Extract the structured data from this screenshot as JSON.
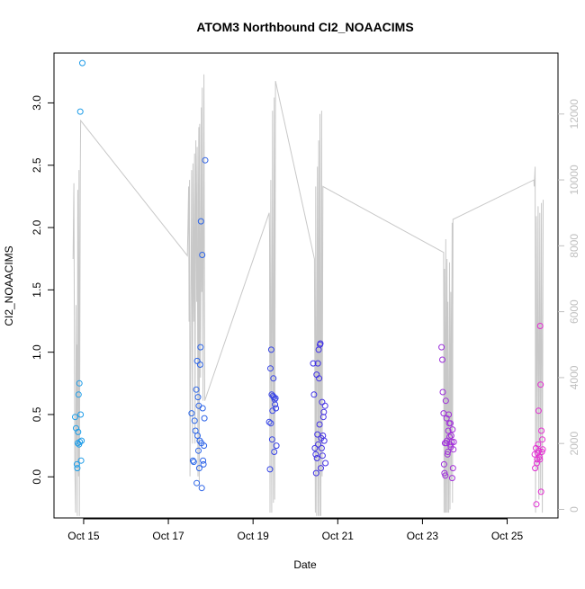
{
  "chart_data": {
    "type": "scatter",
    "title": "ATOM3 Northbound CI2_NOAACIMS",
    "xlabel": "Date",
    "ylabel": "CI2_NOAACIMS",
    "x_ticks": [
      "Oct 15",
      "Oct 17",
      "Oct 19",
      "Oct 21",
      "Oct 23",
      "Oct 25"
    ],
    "x_tick_days": [
      15,
      17,
      19,
      21,
      23,
      25
    ],
    "xlim": [
      14.3,
      26.2
    ],
    "ylim": [
      -0.33,
      3.4
    ],
    "y_ticks": [
      "0.0",
      "0.5",
      "1.0",
      "1.5",
      "2.0",
      "2.5",
      "3.0"
    ],
    "y_tick_values": [
      0,
      0.5,
      1.0,
      1.5,
      2.0,
      2.5,
      3.0
    ],
    "y2lim": [
      -260,
      13850
    ],
    "y2_ticks": [
      "0",
      "2000",
      "4000",
      "6000",
      "8000",
      "10000",
      "12000"
    ],
    "y2_tick_values": [
      0,
      2000,
      4000,
      6000,
      8000,
      10000,
      12000
    ],
    "grid": false,
    "legend": "none",
    "colors": {
      "points_start": "#1E9FE8",
      "points_mid": "#3A32E6",
      "points_end": "#E62ED2",
      "altitude_line": "#c8c8c8",
      "axis": "#000000",
      "right_axis_text": "#bfbfbf"
    },
    "series": [
      {
        "values": [
          [
            14.8,
            0.48
          ],
          [
            14.82,
            0.39
          ],
          [
            14.84,
            0.1
          ],
          [
            14.85,
            0.07
          ],
          [
            14.86,
            0.27
          ],
          [
            14.87,
            0.36
          ],
          [
            14.88,
            0.66
          ],
          [
            14.89,
            0.26
          ],
          [
            14.9,
            0.75
          ],
          [
            14.91,
            0.28
          ],
          [
            14.92,
            2.93
          ],
          [
            14.93,
            0.5
          ],
          [
            14.94,
            0.13
          ],
          [
            14.95,
            0.29
          ],
          [
            14.97,
            3.32
          ],
          [
            17.55,
            0.51
          ],
          [
            17.58,
            0.13
          ],
          [
            17.6,
            0.12
          ],
          [
            17.62,
            0.45
          ],
          [
            17.64,
            0.37
          ],
          [
            17.66,
            0.7
          ],
          [
            17.67,
            -0.05
          ],
          [
            17.68,
            0.93
          ],
          [
            17.69,
            0.33
          ],
          [
            17.7,
            0.64
          ],
          [
            17.71,
            0.21
          ],
          [
            17.72,
            0.57
          ],
          [
            17.73,
            0.07
          ],
          [
            17.74,
            0.29
          ],
          [
            17.75,
            0.9
          ],
          [
            17.76,
            1.04
          ],
          [
            17.77,
            2.05
          ],
          [
            17.78,
            0.27
          ],
          [
            17.79,
            -0.09
          ],
          [
            17.8,
            1.78
          ],
          [
            17.81,
            0.55
          ],
          [
            17.82,
            0.13
          ],
          [
            17.83,
            0.1
          ],
          [
            17.84,
            0.25
          ],
          [
            17.85,
            0.47
          ],
          [
            17.87,
            2.54
          ],
          [
            19.38,
            0.44
          ],
          [
            19.4,
            0.06
          ],
          [
            19.41,
            0.87
          ],
          [
            19.42,
            0.43
          ],
          [
            19.43,
            1.02
          ],
          [
            19.44,
            0.66
          ],
          [
            19.45,
            0.3
          ],
          [
            19.46,
            0.53
          ],
          [
            19.47,
            0.65
          ],
          [
            19.48,
            0.79
          ],
          [
            19.49,
            0.64
          ],
          [
            19.5,
            0.2
          ],
          [
            19.51,
            0.62
          ],
          [
            19.52,
            0.58
          ],
          [
            19.53,
            0.63
          ],
          [
            19.54,
            0.55
          ],
          [
            19.55,
            0.25
          ],
          [
            20.42,
            0.91
          ],
          [
            20.44,
            0.66
          ],
          [
            20.46,
            0.23
          ],
          [
            20.48,
            0.18
          ],
          [
            20.49,
            0.03
          ],
          [
            20.5,
            0.82
          ],
          [
            20.51,
            0.15
          ],
          [
            20.52,
            0.34
          ],
          [
            20.53,
            0.91
          ],
          [
            20.54,
            0.26
          ],
          [
            20.55,
            1.02
          ],
          [
            20.56,
            0.79
          ],
          [
            20.57,
            0.42
          ],
          [
            20.58,
            1.06
          ],
          [
            20.59,
            1.07
          ],
          [
            20.6,
            0.07
          ],
          [
            20.61,
            0.31
          ],
          [
            20.62,
            0.23
          ],
          [
            20.63,
            0.6
          ],
          [
            20.64,
            0.17
          ],
          [
            20.65,
            0.33
          ],
          [
            20.66,
            0.48
          ],
          [
            20.67,
            0.52
          ],
          [
            20.68,
            0.29
          ],
          [
            20.7,
            0.57
          ],
          [
            20.71,
            0.11
          ],
          [
            23.45,
            1.04
          ],
          [
            23.47,
            0.94
          ],
          [
            23.48,
            0.68
          ],
          [
            23.5,
            0.51
          ],
          [
            23.51,
            0.1
          ],
          [
            23.52,
            0.03
          ],
          [
            23.53,
            0.27
          ],
          [
            23.54,
            0.01
          ],
          [
            23.55,
            0.61
          ],
          [
            23.56,
            0.27
          ],
          [
            23.57,
            0.47
          ],
          [
            23.58,
            0.29
          ],
          [
            23.59,
            0.18
          ],
          [
            23.6,
            0.2
          ],
          [
            23.61,
            0.37
          ],
          [
            23.62,
            0.5
          ],
          [
            23.63,
            0.43
          ],
          [
            23.64,
            0.32
          ],
          [
            23.65,
            0.26
          ],
          [
            23.66,
            0.43
          ],
          [
            23.67,
            0.24
          ],
          [
            23.68,
            0.33
          ],
          [
            23.69,
            0.28
          ],
          [
            23.7,
            -0.01
          ],
          [
            23.71,
            0.38
          ],
          [
            23.72,
            0.07
          ],
          [
            23.73,
            0.22
          ],
          [
            23.74,
            0.28
          ],
          [
            25.65,
            0.18
          ],
          [
            25.66,
            0.07
          ],
          [
            25.68,
            0.23
          ],
          [
            25.69,
            -0.22
          ],
          [
            25.7,
            0.11
          ],
          [
            25.71,
            0.14
          ],
          [
            25.72,
            0.19
          ],
          [
            25.73,
            0.26
          ],
          [
            25.74,
            0.53
          ],
          [
            25.75,
            0.21
          ],
          [
            25.76,
            0.16
          ],
          [
            25.77,
            0.14
          ],
          [
            25.78,
            1.21
          ],
          [
            25.79,
            0.74
          ],
          [
            25.8,
            -0.12
          ],
          [
            25.81,
            0.37
          ],
          [
            25.82,
            0.2
          ],
          [
            25.83,
            0.3
          ],
          [
            25.84,
            0.22
          ]
        ]
      },
      {
        "axis": "right",
        "style": "line",
        "values": [
          [
            14.75,
            7600
          ],
          [
            14.77,
            9900
          ],
          [
            14.79,
            1400
          ],
          [
            14.81,
            -100
          ],
          [
            14.82,
            6200
          ],
          [
            14.83,
            2100
          ],
          [
            14.84,
            5000
          ],
          [
            14.85,
            -200
          ],
          [
            14.86,
            9700
          ],
          [
            14.88,
            1000
          ],
          [
            14.89,
            10300
          ],
          [
            14.9,
            -200
          ],
          [
            14.92,
            10100
          ],
          [
            14.93,
            11800
          ],
          [
            17.45,
            7700
          ],
          [
            17.46,
            8400
          ],
          [
            17.48,
            9800
          ],
          [
            17.49,
            5700
          ],
          [
            17.5,
            10000
          ],
          [
            17.51,
            1000
          ],
          [
            17.53,
            5300
          ],
          [
            17.55,
            10300
          ],
          [
            17.57,
            2000
          ],
          [
            17.58,
            10500
          ],
          [
            17.6,
            5700
          ],
          [
            17.62,
            10800
          ],
          [
            17.63,
            2000
          ],
          [
            17.65,
            11200
          ],
          [
            17.67,
            6300
          ],
          [
            17.68,
            11000
          ],
          [
            17.7,
            1000
          ],
          [
            17.71,
            9800
          ],
          [
            17.72,
            11600
          ],
          [
            17.73,
            700
          ],
          [
            17.74,
            11700
          ],
          [
            17.76,
            4000
          ],
          [
            17.78,
            12200
          ],
          [
            17.79,
            6600
          ],
          [
            17.8,
            12800
          ],
          [
            17.82,
            3300
          ],
          [
            17.84,
            13200
          ],
          [
            17.86,
            3300
          ],
          [
            19.38,
            9000
          ],
          [
            19.39,
            8400
          ],
          [
            19.4,
            -100
          ],
          [
            19.42,
            10000
          ],
          [
            19.44,
            -100
          ],
          [
            19.46,
            12100
          ],
          [
            19.48,
            200
          ],
          [
            19.5,
            12500
          ],
          [
            19.51,
            300
          ],
          [
            19.53,
            13000
          ],
          [
            20.45,
            7600
          ],
          [
            20.47,
            -100
          ],
          [
            20.48,
            9800
          ],
          [
            20.5,
            -200
          ],
          [
            20.52,
            10400
          ],
          [
            20.54,
            -200
          ],
          [
            20.55,
            11200
          ],
          [
            20.57,
            -200
          ],
          [
            20.58,
            12000
          ],
          [
            20.6,
            -200
          ],
          [
            20.62,
            12100
          ],
          [
            20.63,
            1000
          ],
          [
            20.65,
            9800
          ],
          [
            23.5,
            7800
          ],
          [
            23.51,
            -100
          ],
          [
            23.52,
            7300
          ],
          [
            23.54,
            -100
          ],
          [
            23.55,
            8200
          ],
          [
            23.56,
            -100
          ],
          [
            23.58,
            7600
          ],
          [
            23.59,
            -100
          ],
          [
            23.6,
            6300
          ],
          [
            23.62,
            -100
          ],
          [
            23.64,
            7500
          ],
          [
            23.65,
            0
          ],
          [
            23.67,
            6600
          ],
          [
            23.68,
            900
          ],
          [
            23.7,
            8700
          ],
          [
            23.71,
            200
          ],
          [
            23.72,
            8800
          ],
          [
            25.63,
            10000
          ],
          [
            25.64,
            9800
          ],
          [
            25.66,
            10400
          ],
          [
            25.67,
            -100
          ],
          [
            25.69,
            8900
          ],
          [
            25.71,
            1200
          ],
          [
            25.73,
            9200
          ],
          [
            25.75,
            300
          ],
          [
            25.77,
            9000
          ],
          [
            25.79,
            500
          ],
          [
            25.81,
            9300
          ],
          [
            25.83,
            -100
          ],
          [
            25.85,
            9400
          ]
        ]
      }
    ]
  }
}
